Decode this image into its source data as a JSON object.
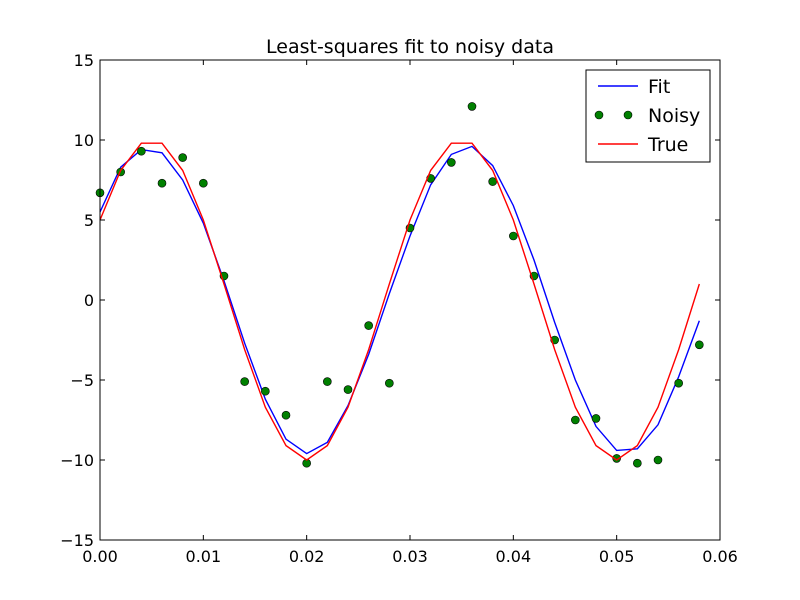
{
  "chart_data": {
    "type": "line",
    "title": "Least-squares fit to noisy data",
    "xlabel": "",
    "ylabel": "",
    "xlim": [
      0.0,
      0.06
    ],
    "ylim": [
      -15,
      15
    ],
    "x_ticks": [
      0.0,
      0.01,
      0.02,
      0.03,
      0.04,
      0.05,
      0.06
    ],
    "x_tick_labels": [
      "0.00",
      "0.01",
      "0.02",
      "0.03",
      "0.04",
      "0.05",
      "0.06"
    ],
    "y_ticks": [
      -15,
      -10,
      -5,
      0,
      5,
      10,
      15
    ],
    "y_tick_labels": [
      "−15",
      "−10",
      "−5",
      "0",
      "5",
      "10",
      "15"
    ],
    "grid": false,
    "legend_position": "top-right",
    "x": [
      0.0,
      0.002,
      0.004,
      0.006,
      0.008,
      0.01,
      0.012,
      0.014,
      0.016,
      0.018,
      0.02,
      0.022,
      0.024,
      0.026,
      0.028,
      0.03,
      0.032,
      0.034,
      0.036,
      0.038,
      0.04,
      0.042,
      0.044,
      0.046,
      0.048,
      0.05,
      0.052,
      0.054,
      0.056,
      0.058
    ],
    "series": [
      {
        "name": "Fit",
        "style": "line",
        "color": "#0000ff",
        "values": [
          5.5,
          8.3,
          9.4,
          9.2,
          7.5,
          4.8,
          1.2,
          -2.7,
          -6.2,
          -8.7,
          -9.6,
          -8.9,
          -6.6,
          -3.4,
          0.4,
          4.0,
          7.2,
          9.1,
          9.6,
          8.4,
          5.9,
          2.5,
          -1.4,
          -5.0,
          -7.9,
          -9.4,
          -9.3,
          -7.8,
          -4.8,
          -1.3
        ]
      },
      {
        "name": "Noisy",
        "style": "markers",
        "color": "#008000",
        "values": [
          6.7,
          8.0,
          9.3,
          7.3,
          8.9,
          7.3,
          1.5,
          -5.1,
          -5.7,
          -7.2,
          -10.2,
          -5.1,
          -5.6,
          -1.6,
          -5.2,
          4.5,
          7.6,
          8.6,
          12.1,
          7.4,
          4.0,
          1.5,
          -2.5,
          -7.5,
          -7.4,
          -9.9,
          -10.2,
          -10.0,
          -5.2,
          -2.8
        ]
      },
      {
        "name": "True",
        "style": "line",
        "color": "#ff0000",
        "values": [
          5.0,
          8.1,
          9.8,
          9.8,
          8.1,
          5.0,
          1.0,
          -3.1,
          -6.7,
          -9.1,
          -10.0,
          -9.1,
          -6.7,
          -3.1,
          1.0,
          5.0,
          8.1,
          9.8,
          9.8,
          8.1,
          5.0,
          1.0,
          -3.1,
          -6.7,
          -9.1,
          -10.0,
          -9.1,
          -6.7,
          -3.1,
          1.0
        ]
      }
    ]
  }
}
